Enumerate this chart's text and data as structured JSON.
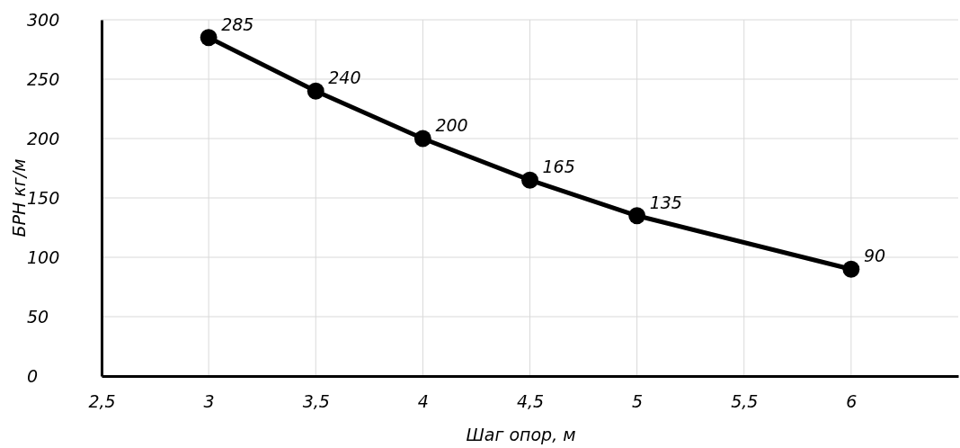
{
  "chart_data": {
    "type": "line",
    "xlabel": "Шаг опор, м",
    "ylabel": "БРН кг/м",
    "x": [
      3,
      3.5,
      4,
      4.5,
      5,
      6
    ],
    "series": [
      {
        "color": "#000000",
        "values": [
          285,
          240,
          200,
          165,
          135,
          90
        ]
      }
    ],
    "xlim": [
      2.5,
      6.5
    ],
    "xticks": [
      {
        "value": 2.5,
        "label": "2,5"
      },
      3,
      {
        "value": 3.5,
        "label": "3,5"
      },
      4,
      {
        "value": 4.5,
        "label": "4,5"
      },
      5,
      {
        "value": 5.5,
        "label": "5,5"
      },
      6
    ],
    "ylim": [
      0,
      300
    ],
    "yticks": [
      0,
      50,
      100,
      150,
      200,
      250,
      300
    ],
    "grid": true,
    "marker": "circle",
    "line_style": "solid",
    "data_labels": true
  }
}
